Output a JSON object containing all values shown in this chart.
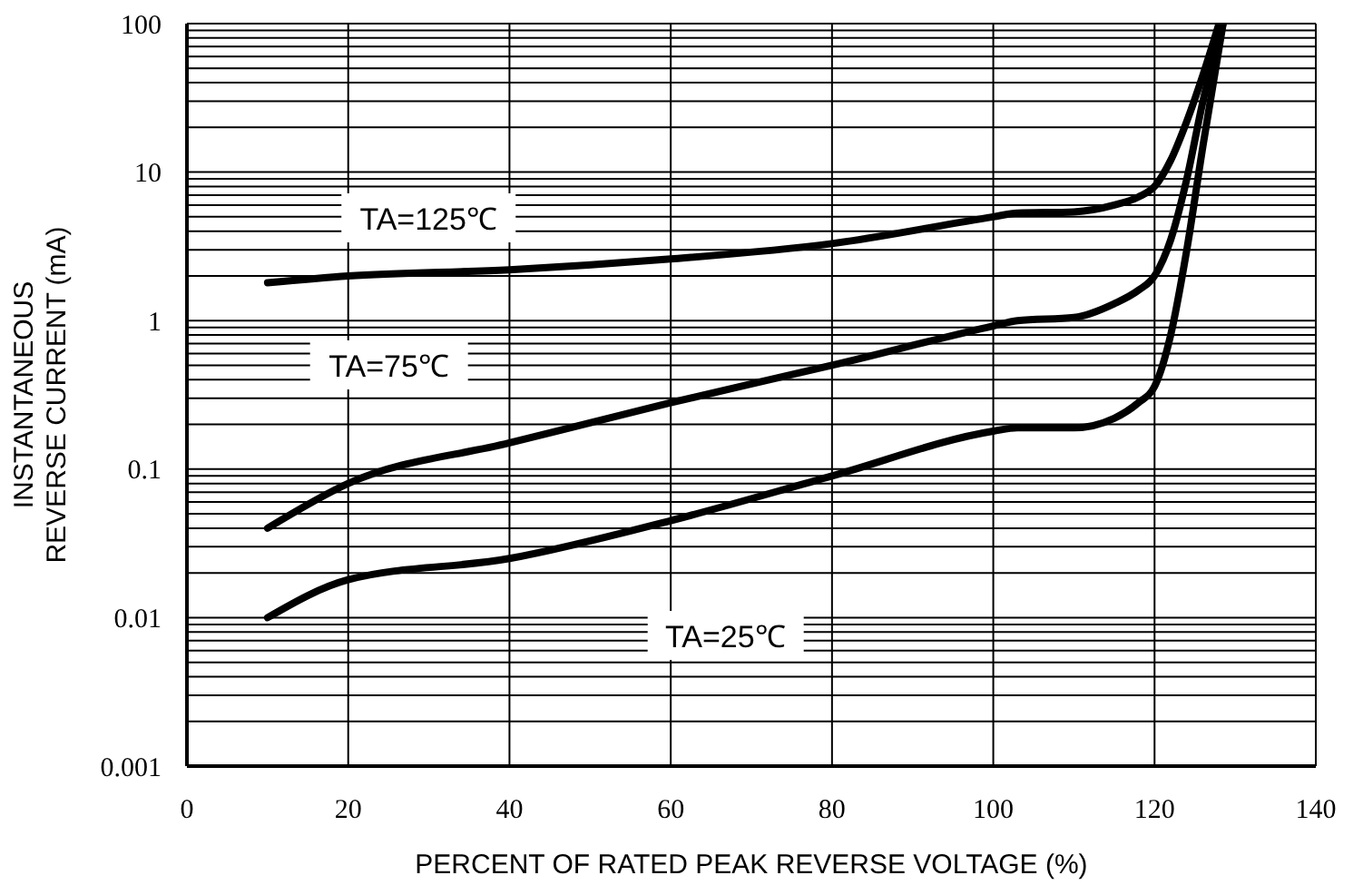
{
  "chart_data": {
    "type": "line",
    "xlabel": "PERCENT OF RATED PEAK REVERSE VOLTAGE (%)",
    "ylabel": "INSTANTANEOUS REVERSE CURRENT (mA)",
    "log": "y",
    "grid": true,
    "xlim": [
      0,
      140
    ],
    "xticks": [
      0,
      20,
      40,
      60,
      80,
      100,
      120,
      140
    ],
    "ylim": [
      0.001,
      100
    ],
    "yticks": [
      0.001,
      0.01,
      0.1,
      1,
      10,
      100
    ],
    "series": [
      {
        "color": "#000000",
        "x": [
          10,
          20,
          40,
          60,
          80,
          100,
          103,
          110,
          115,
          118,
          120,
          122,
          124,
          126,
          128
        ],
        "values": [
          1.8,
          2.0,
          2.2,
          2.6,
          3.3,
          5.0,
          5.3,
          5.4,
          6,
          6.8,
          8,
          12,
          22,
          45,
          100
        ]
      },
      {
        "color": "#000000",
        "x": [
          10,
          20,
          40,
          60,
          80,
          100,
          103,
          110,
          115,
          118,
          120,
          122,
          124,
          126,
          128.5
        ],
        "values": [
          0.04,
          0.08,
          0.15,
          0.28,
          0.5,
          0.92,
          1.0,
          1.05,
          1.3,
          1.6,
          2.0,
          3.5,
          9,
          30,
          100
        ]
      },
      {
        "color": "#000000",
        "x": [
          10,
          20,
          40,
          60,
          80,
          100,
          103,
          110,
          115,
          118,
          120,
          122,
          124,
          126,
          128.5
        ],
        "values": [
          0.01,
          0.018,
          0.025,
          0.045,
          0.09,
          0.18,
          0.19,
          0.19,
          0.22,
          0.28,
          0.36,
          0.8,
          3,
          15,
          100
        ]
      }
    ],
    "annotations": [
      "TA=125℃",
      "TA=75℃",
      "TA=25℃"
    ]
  }
}
